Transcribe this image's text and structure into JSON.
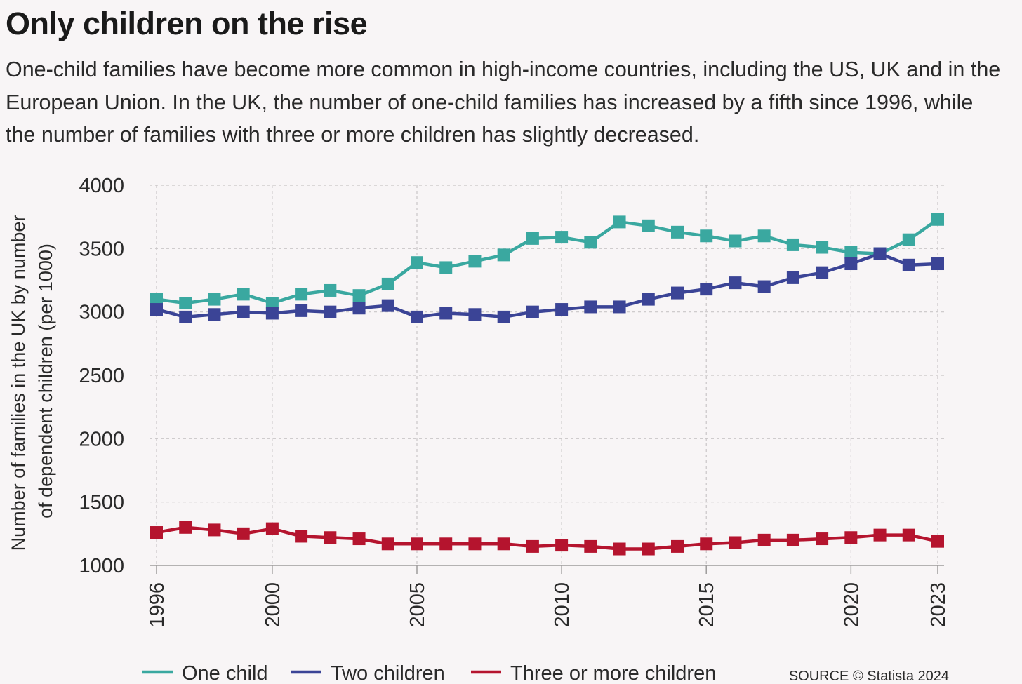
{
  "header": {
    "title": "Only children on the rise",
    "subtitle": "One-child families have become more common in high-income countries, including the US, UK and in the European Union. In the UK, the number of one-child families has increased by a fifth since 1996, while the number of families with three or more children has slightly decreased."
  },
  "source": "SOURCE © Statista 2024",
  "colors": {
    "one_child": "#3aa8a0",
    "two_children": "#3b4496",
    "three_or_more": "#b5142e",
    "grid": "#c9c6c7",
    "text": "#2a2a2a"
  },
  "chart_data": {
    "type": "line",
    "ylabel": "Number of families in the UK by number of dependent children (per 1000)",
    "ylabel_lines": [
      "Number of families in the UK by number",
      "of dependent children (per 1000)"
    ],
    "xlabel": "",
    "ylim": [
      1000,
      4000
    ],
    "yticks": [
      1000,
      1500,
      2000,
      2500,
      3000,
      3500,
      4000
    ],
    "xticks": [
      1996,
      2000,
      2005,
      2010,
      2015,
      2020,
      2023
    ],
    "grid": true,
    "legend_position": "bottom",
    "marker": "square",
    "x": [
      1996,
      1997,
      1998,
      1999,
      2000,
      2001,
      2002,
      2003,
      2004,
      2005,
      2006,
      2007,
      2008,
      2009,
      2010,
      2011,
      2012,
      2013,
      2014,
      2015,
      2016,
      2017,
      2018,
      2019,
      2020,
      2021,
      2022,
      2023
    ],
    "series": [
      {
        "name": "One child",
        "color": "#3aa8a0",
        "values": [
          3100,
          3070,
          3100,
          3140,
          3070,
          3140,
          3170,
          3130,
          3220,
          3390,
          3350,
          3400,
          3450,
          3580,
          3590,
          3550,
          3710,
          3680,
          3630,
          3600,
          3560,
          3600,
          3530,
          3510,
          3470,
          3460,
          3570,
          3730
        ]
      },
      {
        "name": "Two children",
        "color": "#3b4496",
        "values": [
          3020,
          2960,
          2980,
          3000,
          2990,
          3010,
          3000,
          3030,
          3050,
          2960,
          2990,
          2980,
          2960,
          3000,
          3020,
          3040,
          3040,
          3100,
          3150,
          3180,
          3230,
          3200,
          3270,
          3310,
          3380,
          3460,
          3370,
          3380
        ]
      },
      {
        "name": "Three or more children",
        "color": "#b5142e",
        "values": [
          1260,
          1300,
          1280,
          1250,
          1290,
          1230,
          1220,
          1210,
          1170,
          1170,
          1170,
          1170,
          1170,
          1150,
          1160,
          1150,
          1130,
          1130,
          1150,
          1170,
          1180,
          1200,
          1200,
          1210,
          1220,
          1240,
          1240,
          1190
        ]
      }
    ]
  }
}
